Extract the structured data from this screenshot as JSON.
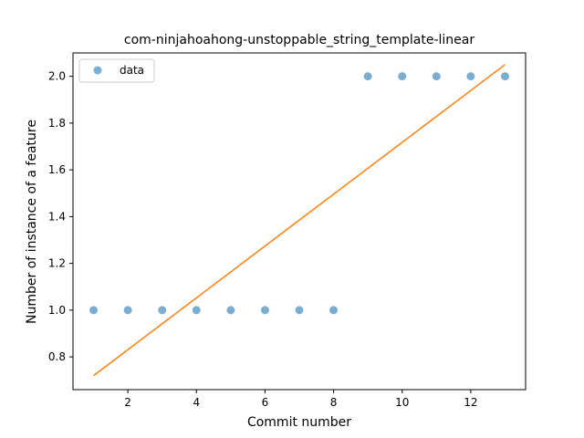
{
  "chart_data": {
    "type": "scatter",
    "title": "com-ninjahoahong-unstoppable_string_template-linear",
    "xlabel": "Commit number",
    "ylabel": "Number of instance of a feature",
    "xlim": [
      0.4,
      13.6
    ],
    "ylim": [
      0.66,
      2.1
    ],
    "xticks": [
      2,
      4,
      6,
      8,
      10,
      12
    ],
    "xtick_labels": [
      "2",
      "4",
      "6",
      "8",
      "10",
      "12"
    ],
    "yticks": [
      0.8,
      1.0,
      1.2,
      1.4,
      1.6,
      1.8,
      2.0
    ],
    "ytick_labels": [
      "0.8",
      "1.0",
      "1.2",
      "1.4",
      "1.6",
      "1.8",
      "2.0"
    ],
    "legend_placement": "upper-left",
    "grid": false,
    "series": [
      {
        "name": "data",
        "kind": "scatter",
        "color": "#1f77b4",
        "x": [
          1,
          2,
          3,
          4,
          5,
          6,
          7,
          8,
          9,
          10,
          11,
          12,
          13
        ],
        "y": [
          1,
          1,
          1,
          1,
          1,
          1,
          1,
          1,
          2,
          2,
          2,
          2,
          2
        ]
      },
      {
        "kind": "line",
        "color": "#ff7f0e",
        "x": [
          1,
          13
        ],
        "y": [
          0.72,
          2.05
        ]
      }
    ]
  }
}
